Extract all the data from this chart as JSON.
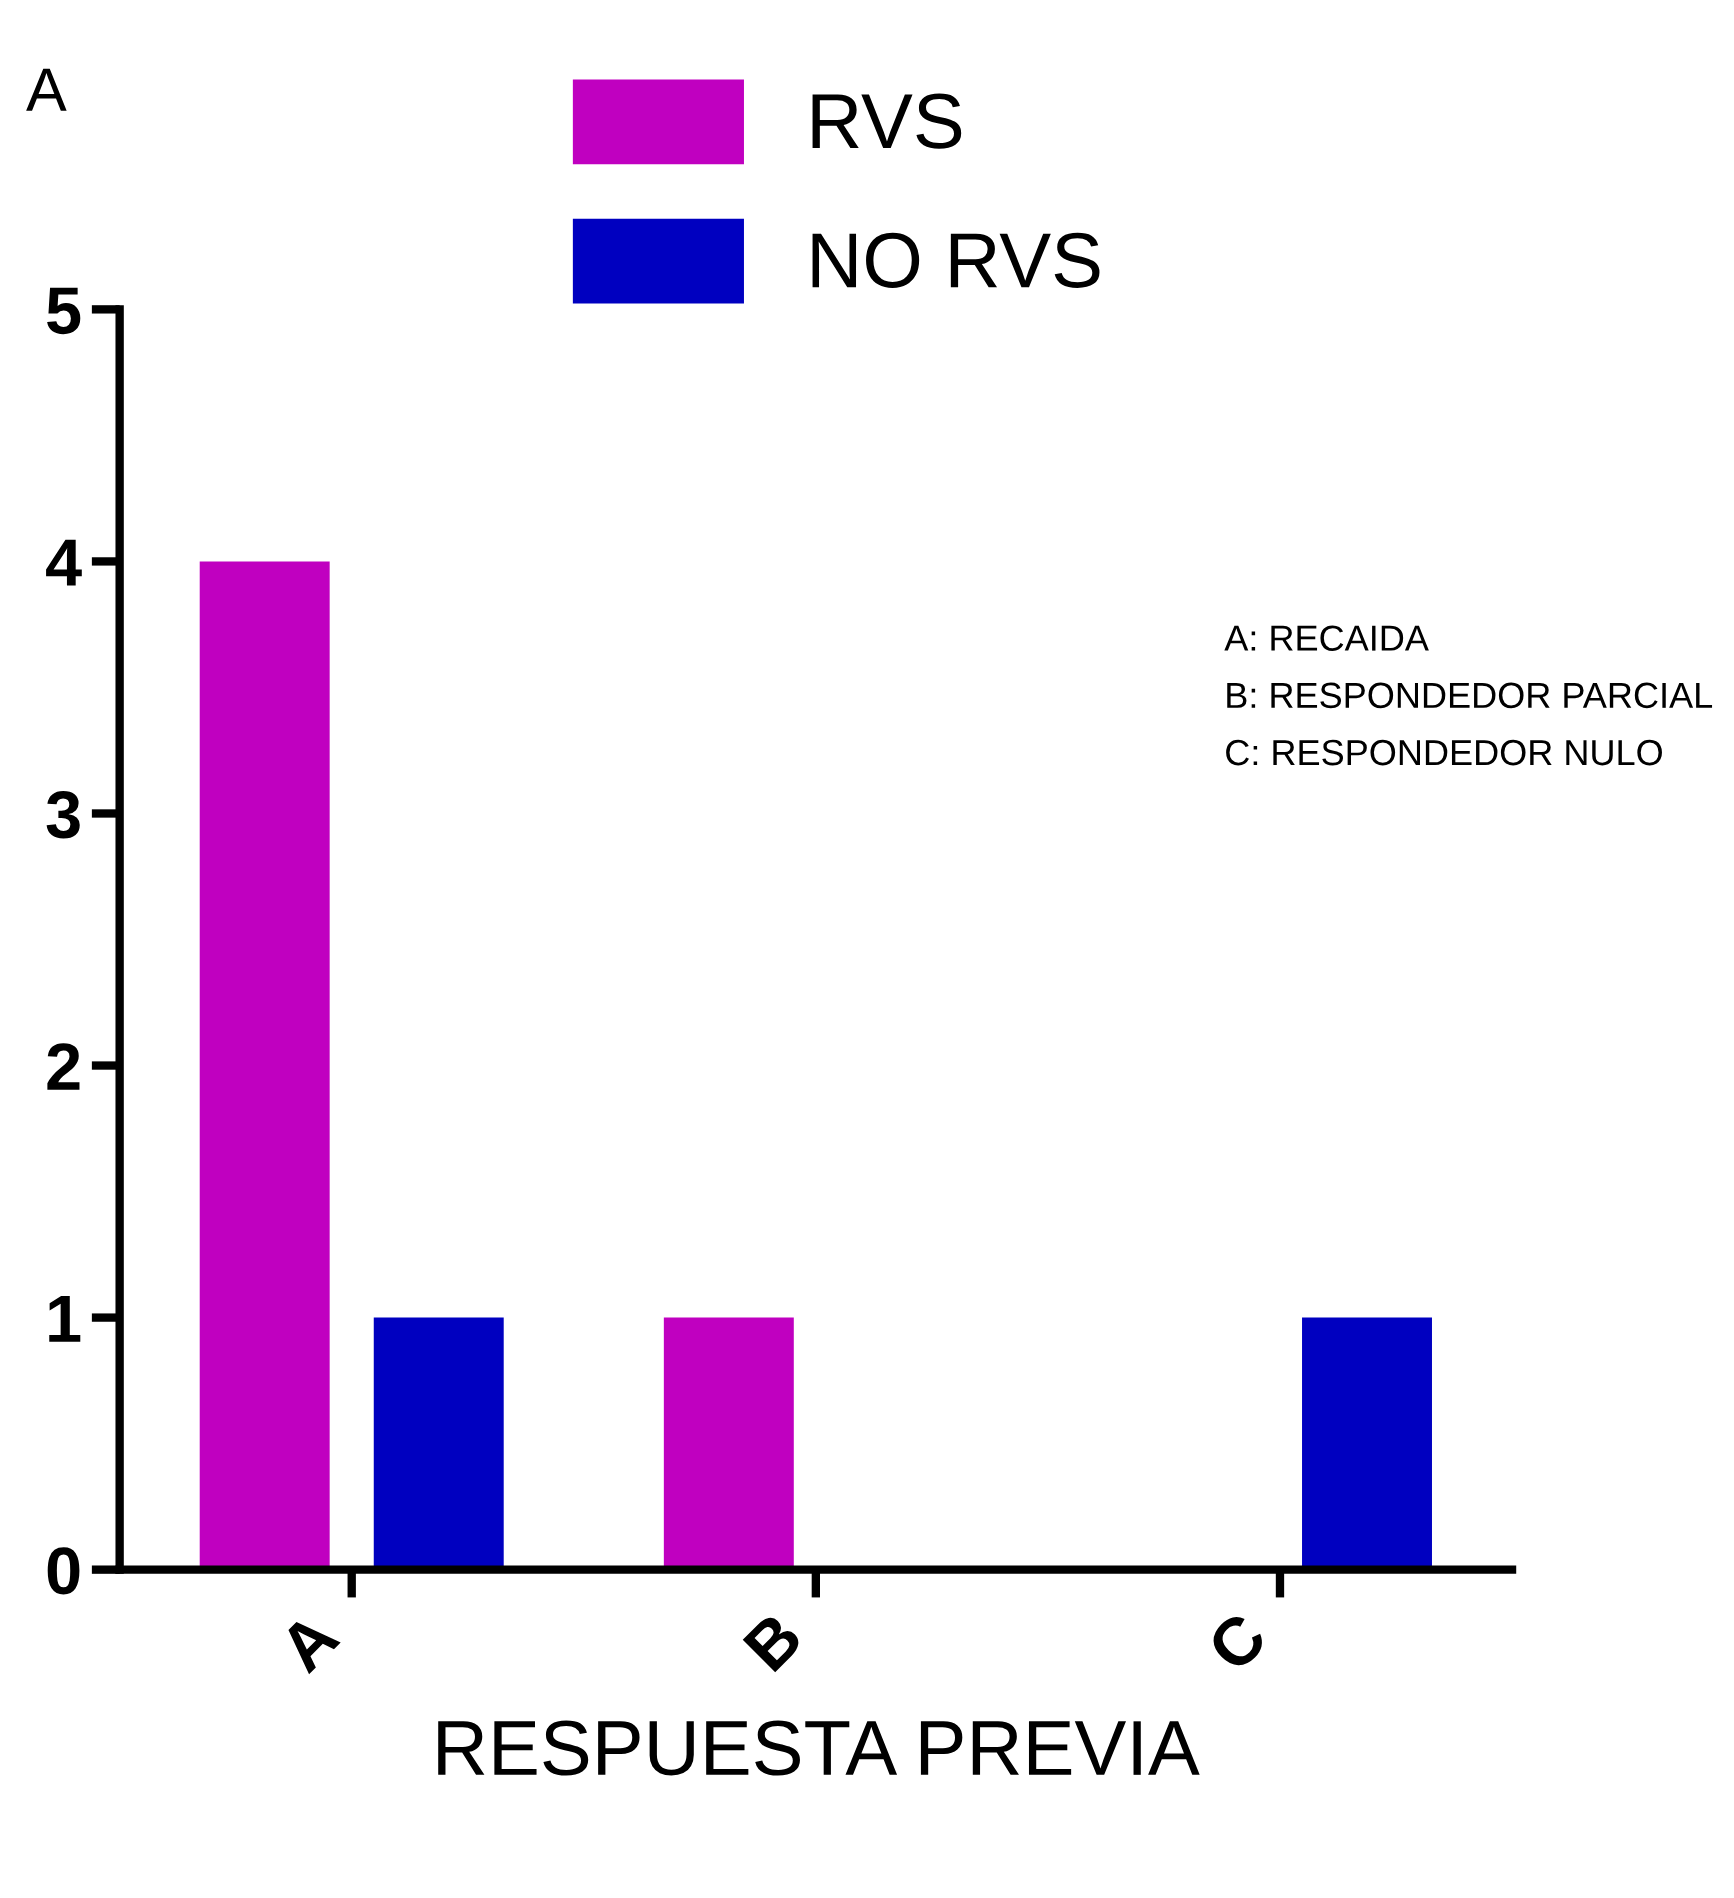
{
  "chart_data": {
    "type": "bar",
    "categories": [
      "A",
      "B",
      "C"
    ],
    "series": [
      {
        "name": "RVS",
        "color": "#c000c0",
        "values": [
          4,
          1,
          0
        ]
      },
      {
        "name": "NO RVS",
        "color": "#0000c0",
        "values": [
          1,
          0,
          1
        ]
      }
    ],
    "xlabel": "RESPUESTA PREVIA",
    "ylim": [
      0,
      5
    ],
    "yticks": [
      0,
      1,
      2,
      3,
      4,
      5
    ],
    "legend": "top",
    "grid": false,
    "annotations": [
      "A",
      "A: RECAIDA\nB: RESPONDEDOR PARCIAL\nC: RESPONDEDOR NULO"
    ]
  }
}
